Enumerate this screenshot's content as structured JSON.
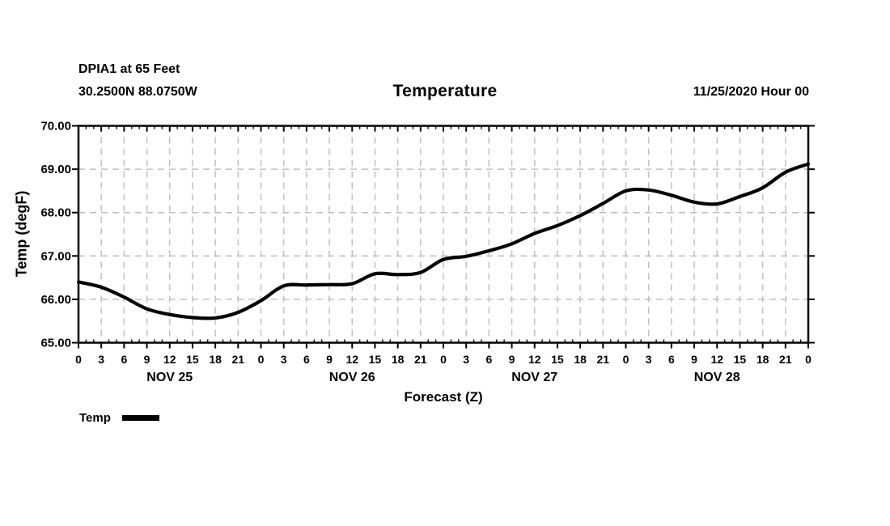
{
  "header": {
    "station": "DPIA1 at 65 Feet",
    "location": "30.2500N 88.0750W",
    "title": "Temperature",
    "run_datetime": "11/25/2020 Hour 00"
  },
  "legend": {
    "label": "Temp",
    "swatch_color": "#000000"
  },
  "chart_data": {
    "type": "line",
    "title": "Temperature",
    "xlabel": "Forecast (Z)",
    "ylabel": "Temp (degF)",
    "ylim": [
      65.0,
      70.0
    ],
    "xlim_hours": [
      0,
      96
    ],
    "grid": true,
    "grid_color": "#c0c0c0",
    "axis_color": "#000000",
    "legend_position": "bottom-left",
    "y_tick_values": [
      70,
      69,
      68,
      67,
      66,
      65
    ],
    "y_tick_labels": [
      "70.00",
      "69.00",
      "68.00",
      "67.00",
      "66.00",
      "65.00"
    ],
    "x_major_tick_interval_hours": 3,
    "x_minor_tick_interval_hours": 1,
    "x_tick_labels": [
      "0",
      "3",
      "6",
      "9",
      "12",
      "15",
      "18",
      "21",
      "0",
      "3",
      "6",
      "9",
      "12",
      "15",
      "18",
      "21",
      "0",
      "3",
      "6",
      "9",
      "12",
      "15",
      "18",
      "21",
      "0",
      "3",
      "6",
      "9",
      "12",
      "15",
      "18",
      "21",
      "0"
    ],
    "day_labels": [
      "NOV 25",
      "NOV 26",
      "NOV 27",
      "NOV 28"
    ],
    "day_label_center_hours": [
      12,
      36,
      60,
      84
    ],
    "series": [
      {
        "name": "Temp",
        "color": "#000000",
        "x_hours": [
          0,
          3,
          6,
          9,
          12,
          15,
          18,
          21,
          24,
          27,
          30,
          33,
          36,
          39,
          42,
          45,
          48,
          51,
          54,
          57,
          60,
          63,
          66,
          69,
          72,
          75,
          78,
          81,
          84,
          87,
          90,
          93,
          96
        ],
        "values": [
          66.4,
          66.28,
          66.05,
          65.78,
          65.65,
          65.58,
          65.57,
          65.7,
          65.97,
          66.31,
          66.33,
          66.34,
          66.36,
          66.59,
          66.57,
          66.62,
          66.92,
          66.99,
          67.12,
          67.28,
          67.52,
          67.7,
          67.93,
          68.21,
          68.5,
          68.52,
          68.4,
          68.24,
          68.2,
          68.37,
          68.57,
          68.93,
          69.12
        ]
      }
    ]
  }
}
